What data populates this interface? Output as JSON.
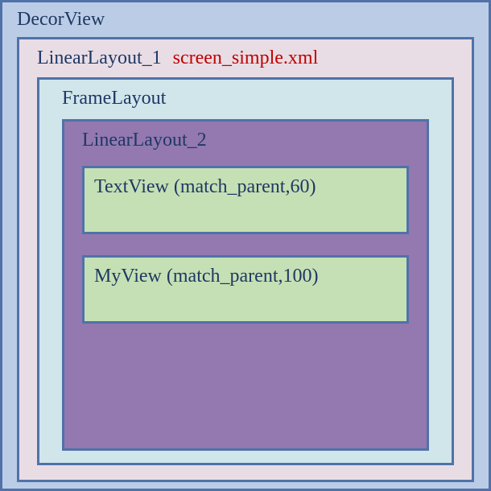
{
  "diagram": {
    "type": "nested-boxes",
    "background_color": "#ffffff",
    "font_family": "Times New Roman",
    "font_size": 24,
    "border_color": "#5072A8",
    "border_width": 3,
    "text_color": "#1F3864",
    "annotation_color": "#C00000"
  },
  "decorView": {
    "label": "DecorView",
    "background_color": "#BBCDE6"
  },
  "linearLayout1": {
    "label": "LinearLayout_1",
    "annotation": "screen_simple.xml",
    "background_color": "#E9DDE5"
  },
  "frameLayout": {
    "label": "FrameLayout",
    "background_color": "#D1E6EB"
  },
  "linearLayout2": {
    "label": "LinearLayout_2",
    "background_color": "#9379B0"
  },
  "textView": {
    "label": "TextView (match_parent,60)",
    "background_color": "#C5E0B4"
  },
  "myView": {
    "label": "MyView (match_parent,100)",
    "background_color": "#C5E0B4"
  }
}
